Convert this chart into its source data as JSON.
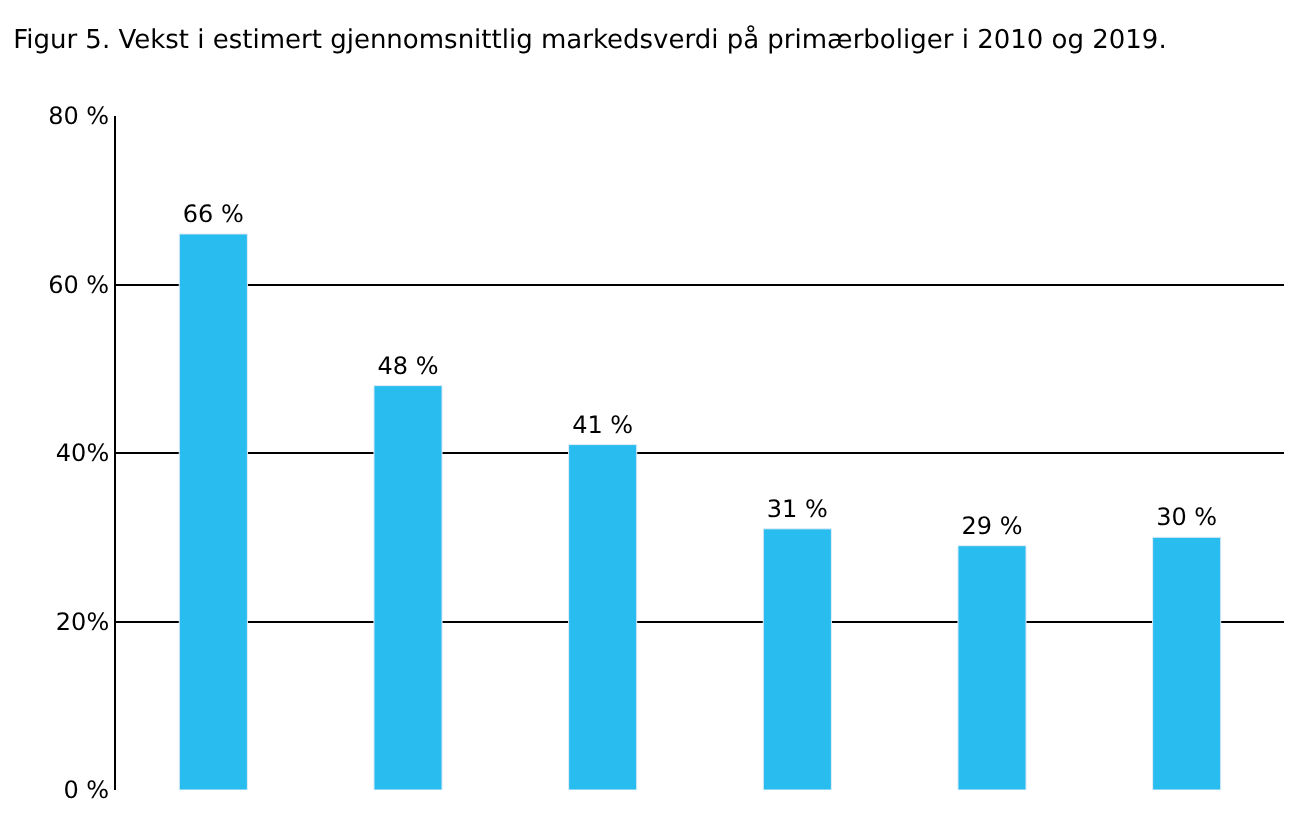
{
  "chart_data": {
    "type": "bar",
    "title": "Figur 5. Vekst i estimert gjennomsnittlig markedsverdi på primærboliger i 2010 og 2019.",
    "categories": [
      null,
      null,
      null,
      null,
      null,
      null
    ],
    "values": [
      66,
      48,
      41,
      31,
      29,
      30
    ],
    "value_labels": [
      "66 %",
      "48 %",
      "41 %",
      "31 %",
      "29 %",
      "30 %"
    ],
    "color": "#29bdef",
    "ylim": [
      0,
      80
    ],
    "yticks": [
      {
        "value": 0,
        "label": "0 %"
      },
      {
        "value": 20,
        "label": "20%"
      },
      {
        "value": 40,
        "label": "40%"
      },
      {
        "value": 60,
        "label": "60 %"
      },
      {
        "value": 80,
        "label": "80 %"
      }
    ],
    "grid": "y",
    "legend": false
  }
}
